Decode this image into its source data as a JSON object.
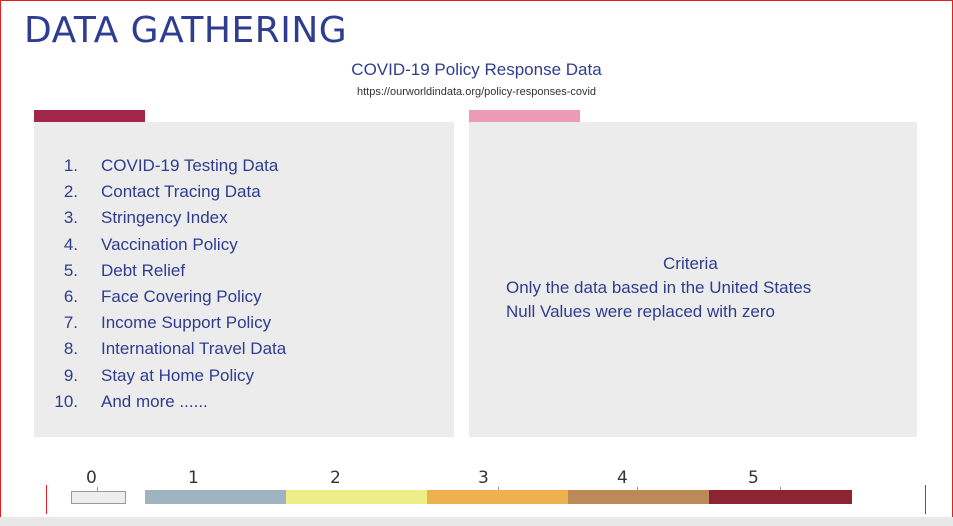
{
  "slide": {
    "title": "DATA GATHERING",
    "subtitle": "COVID-19 Policy Response Data",
    "source_url": "https://ourworldindata.org/policy-responses-covid"
  },
  "left_panel": {
    "accent_color": "#a3264b",
    "items": [
      {
        "num": "1.",
        "text": "COVID-19 Testing Data"
      },
      {
        "num": "2.",
        "text": "Contact Tracing Data"
      },
      {
        "num": "3.",
        "text": "Stringency Index"
      },
      {
        "num": "4.",
        "text": "Vaccination Policy"
      },
      {
        "num": "5.",
        "text": "Debt Relief"
      },
      {
        "num": "6.",
        "text": "Face Covering Policy"
      },
      {
        "num": "7.",
        "text": "Income Support Policy"
      },
      {
        "num": "8.",
        "text": "International Travel Data"
      },
      {
        "num": "9.",
        "text": "Stay at Home Policy"
      },
      {
        "num": "10.",
        "text": "And more ......"
      }
    ]
  },
  "right_panel": {
    "accent_color": "#ec9ab5",
    "criteria_heading": "Criteria",
    "criteria_lines": [
      "Only the data based in the United States",
      "Null Values were replaced with zero"
    ]
  },
  "color_scale": {
    "labels": [
      "0",
      "1",
      "2",
      "3",
      "4",
      "5"
    ],
    "colors": [
      "#eeeeee",
      "#9fb4c0",
      "#eeee88",
      "#eeb14f",
      "#bb8a58",
      "#8b2433"
    ]
  }
}
